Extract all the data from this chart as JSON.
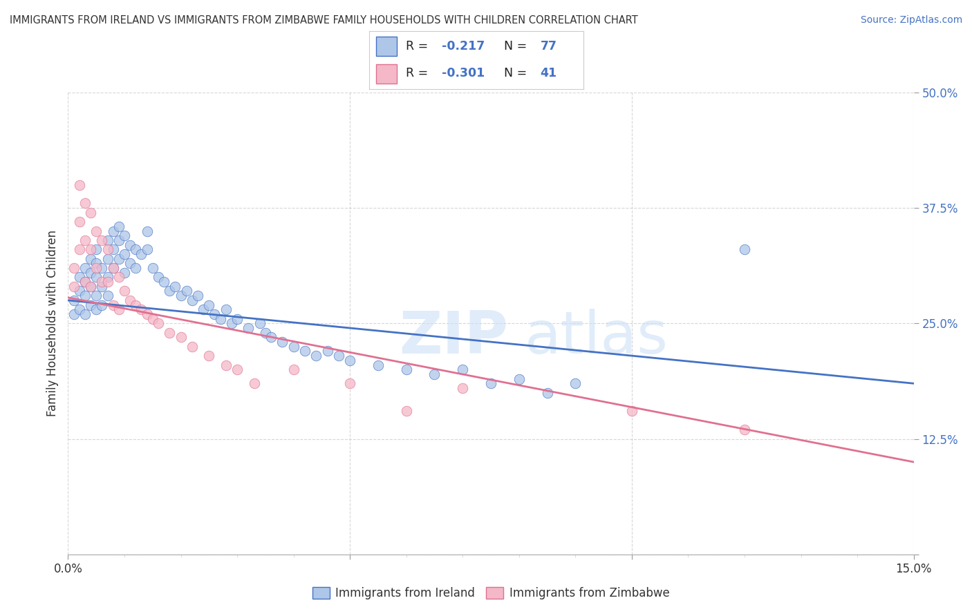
{
  "title": "IMMIGRANTS FROM IRELAND VS IMMIGRANTS FROM ZIMBABWE FAMILY HOUSEHOLDS WITH CHILDREN CORRELATION CHART",
  "source": "Source: ZipAtlas.com",
  "ylabel": "Family Households with Children",
  "xlim": [
    0.0,
    0.15
  ],
  "ylim": [
    0.0,
    0.5
  ],
  "ireland_color": "#aec6e8",
  "zimbabwe_color": "#f4b8c8",
  "ireland_line_color": "#4472c4",
  "zimbabwe_line_color": "#e07090",
  "legend_ireland_label": "Immigrants from Ireland",
  "legend_zimbabwe_label": "Immigrants from Zimbabwe",
  "ireland_R": -0.217,
  "ireland_N": 77,
  "zimbabwe_R": -0.301,
  "zimbabwe_N": 41,
  "ireland_line_x0": 0.0,
  "ireland_line_y0": 0.275,
  "ireland_line_x1": 0.15,
  "ireland_line_y1": 0.185,
  "zimbabwe_line_x0": 0.0,
  "zimbabwe_line_y0": 0.278,
  "zimbabwe_line_x1": 0.15,
  "zimbabwe_line_y1": 0.1,
  "ireland_scatter_x": [
    0.001,
    0.001,
    0.002,
    0.002,
    0.002,
    0.003,
    0.003,
    0.003,
    0.003,
    0.004,
    0.004,
    0.004,
    0.004,
    0.005,
    0.005,
    0.005,
    0.005,
    0.005,
    0.006,
    0.006,
    0.006,
    0.007,
    0.007,
    0.007,
    0.007,
    0.008,
    0.008,
    0.008,
    0.009,
    0.009,
    0.009,
    0.01,
    0.01,
    0.01,
    0.011,
    0.011,
    0.012,
    0.012,
    0.013,
    0.014,
    0.014,
    0.015,
    0.016,
    0.017,
    0.018,
    0.019,
    0.02,
    0.021,
    0.022,
    0.023,
    0.024,
    0.025,
    0.026,
    0.027,
    0.028,
    0.029,
    0.03,
    0.032,
    0.034,
    0.035,
    0.036,
    0.038,
    0.04,
    0.042,
    0.044,
    0.046,
    0.048,
    0.05,
    0.055,
    0.06,
    0.065,
    0.07,
    0.075,
    0.08,
    0.085,
    0.09,
    0.12
  ],
  "ireland_scatter_y": [
    0.275,
    0.26,
    0.3,
    0.285,
    0.265,
    0.31,
    0.295,
    0.28,
    0.26,
    0.32,
    0.305,
    0.29,
    0.27,
    0.33,
    0.315,
    0.3,
    0.28,
    0.265,
    0.31,
    0.29,
    0.27,
    0.34,
    0.32,
    0.3,
    0.28,
    0.35,
    0.33,
    0.31,
    0.355,
    0.34,
    0.32,
    0.345,
    0.325,
    0.305,
    0.335,
    0.315,
    0.33,
    0.31,
    0.325,
    0.35,
    0.33,
    0.31,
    0.3,
    0.295,
    0.285,
    0.29,
    0.28,
    0.285,
    0.275,
    0.28,
    0.265,
    0.27,
    0.26,
    0.255,
    0.265,
    0.25,
    0.255,
    0.245,
    0.25,
    0.24,
    0.235,
    0.23,
    0.225,
    0.22,
    0.215,
    0.22,
    0.215,
    0.21,
    0.205,
    0.2,
    0.195,
    0.2,
    0.185,
    0.19,
    0.175,
    0.185,
    0.33
  ],
  "zimbabwe_scatter_x": [
    0.001,
    0.001,
    0.002,
    0.002,
    0.002,
    0.003,
    0.003,
    0.003,
    0.004,
    0.004,
    0.004,
    0.005,
    0.005,
    0.006,
    0.006,
    0.007,
    0.007,
    0.008,
    0.008,
    0.009,
    0.009,
    0.01,
    0.011,
    0.012,
    0.013,
    0.014,
    0.015,
    0.016,
    0.018,
    0.02,
    0.022,
    0.025,
    0.028,
    0.03,
    0.033,
    0.04,
    0.05,
    0.06,
    0.07,
    0.1,
    0.12
  ],
  "zimbabwe_scatter_y": [
    0.31,
    0.29,
    0.4,
    0.36,
    0.33,
    0.38,
    0.34,
    0.295,
    0.37,
    0.33,
    0.29,
    0.35,
    0.31,
    0.34,
    0.295,
    0.33,
    0.295,
    0.31,
    0.27,
    0.3,
    0.265,
    0.285,
    0.275,
    0.27,
    0.265,
    0.26,
    0.255,
    0.25,
    0.24,
    0.235,
    0.225,
    0.215,
    0.205,
    0.2,
    0.185,
    0.2,
    0.185,
    0.155,
    0.18,
    0.155,
    0.135
  ]
}
